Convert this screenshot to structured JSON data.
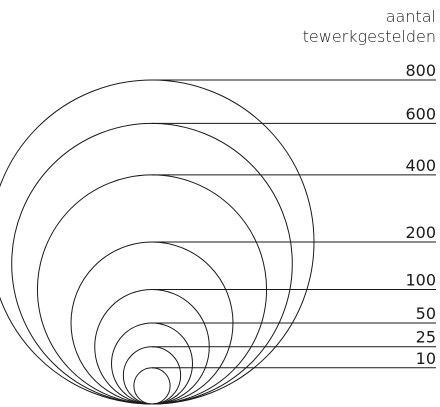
{
  "legend": {
    "title_line1": "aantal",
    "title_line2": "tewerkgestelden"
  },
  "chart_data": {
    "type": "proportional-circles",
    "title": "aantal tewerkgestelden",
    "stroke_color": "#1a1a1a",
    "circles": [
      {
        "label": "800",
        "value": 800
      },
      {
        "label": "600",
        "value": 600
      },
      {
        "label": "400",
        "value": 400
      },
      {
        "label": "200",
        "value": 200
      },
      {
        "label": "100",
        "value": 100
      },
      {
        "label": "50",
        "value": 50
      },
      {
        "label": "25",
        "value": 25
      },
      {
        "label": "10",
        "value": 10
      }
    ]
  }
}
